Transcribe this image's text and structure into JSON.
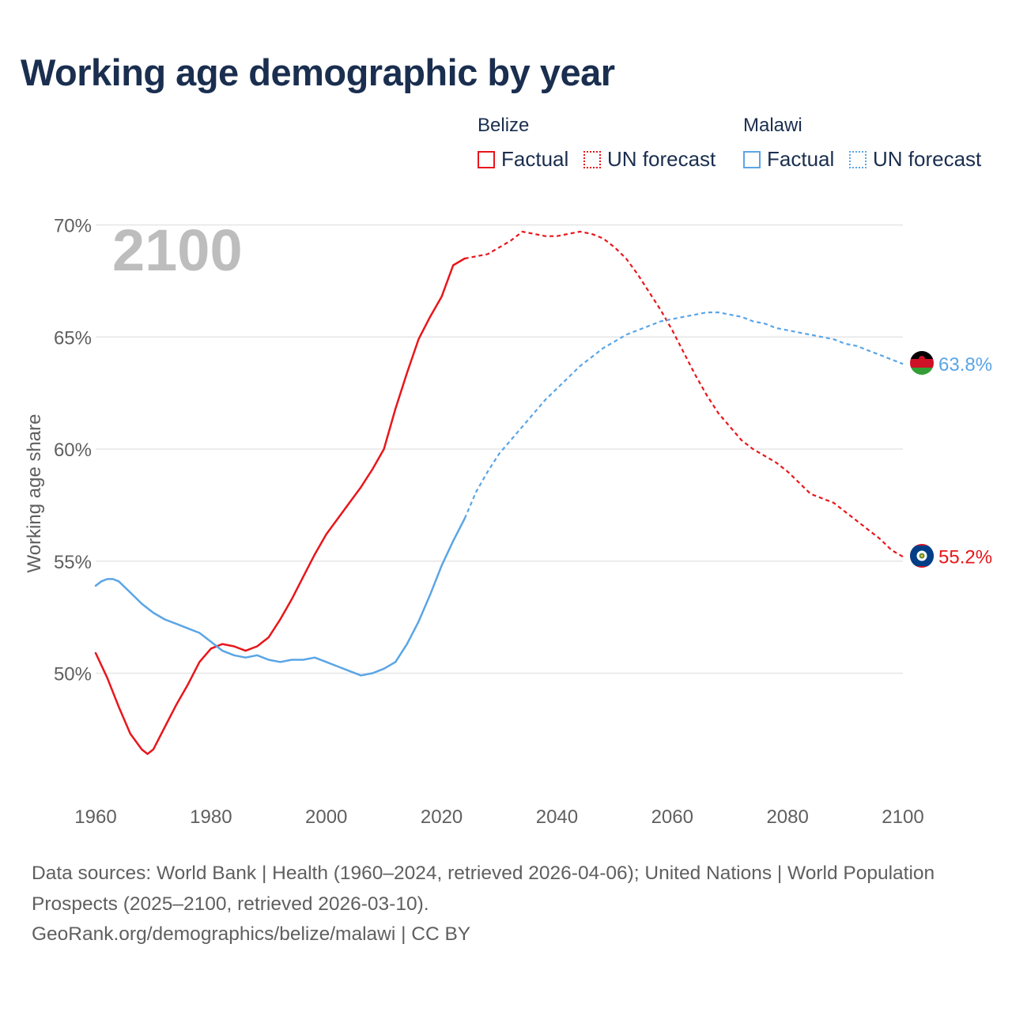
{
  "title": "Working age demographic by year",
  "legend": {
    "groups": [
      {
        "name": "Belize",
        "color": "#e8161b",
        "factual_label": "Factual",
        "forecast_label": "UN forecast"
      },
      {
        "name": "Malawi",
        "color": "#5aa5e6",
        "factual_label": "Factual",
        "forecast_label": "UN forecast"
      }
    ]
  },
  "watermark_year": "2100",
  "chart_data": {
    "type": "line",
    "title": "Working age demographic by year",
    "xlabel": "",
    "ylabel": "Working age share",
    "xlim": [
      1960,
      2100
    ],
    "ylim": [
      45,
      71
    ],
    "xticks": [
      1960,
      1980,
      2000,
      2020,
      2040,
      2060,
      2080,
      2100
    ],
    "x_tick_labels": [
      "1960",
      "1980",
      "2000",
      "2020",
      "2040",
      "2060",
      "2080",
      "2100"
    ],
    "yticks": [
      50,
      55,
      60,
      65,
      70
    ],
    "y_tick_labels": [
      "50%",
      "55%",
      "60%",
      "65%",
      "70%"
    ],
    "grid": true,
    "factual_range": [
      1960,
      2024
    ],
    "forecast_range": [
      2024,
      2100
    ],
    "series": [
      {
        "name": "Belize",
        "color": "#e8161b",
        "end_label": "55.2%",
        "points": [
          [
            1960,
            50.9
          ],
          [
            1962,
            49.8
          ],
          [
            1964,
            48.5
          ],
          [
            1966,
            47.3
          ],
          [
            1968,
            46.6
          ],
          [
            1969,
            46.4
          ],
          [
            1970,
            46.6
          ],
          [
            1972,
            47.6
          ],
          [
            1974,
            48.6
          ],
          [
            1976,
            49.5
          ],
          [
            1978,
            50.5
          ],
          [
            1980,
            51.1
          ],
          [
            1982,
            51.3
          ],
          [
            1984,
            51.2
          ],
          [
            1986,
            51.0
          ],
          [
            1988,
            51.2
          ],
          [
            1990,
            51.6
          ],
          [
            1992,
            52.4
          ],
          [
            1994,
            53.3
          ],
          [
            1996,
            54.3
          ],
          [
            1998,
            55.3
          ],
          [
            2000,
            56.2
          ],
          [
            2002,
            56.9
          ],
          [
            2004,
            57.6
          ],
          [
            2006,
            58.3
          ],
          [
            2008,
            59.1
          ],
          [
            2010,
            60.0
          ],
          [
            2012,
            61.8
          ],
          [
            2014,
            63.4
          ],
          [
            2016,
            64.9
          ],
          [
            2018,
            65.9
          ],
          [
            2020,
            66.8
          ],
          [
            2022,
            68.2
          ],
          [
            2024,
            68.5
          ],
          [
            2026,
            68.6
          ],
          [
            2028,
            68.7
          ],
          [
            2030,
            69.0
          ],
          [
            2032,
            69.3
          ],
          [
            2034,
            69.7
          ],
          [
            2036,
            69.6
          ],
          [
            2038,
            69.5
          ],
          [
            2040,
            69.5
          ],
          [
            2042,
            69.6
          ],
          [
            2044,
            69.7
          ],
          [
            2046,
            69.6
          ],
          [
            2048,
            69.4
          ],
          [
            2050,
            69.0
          ],
          [
            2052,
            68.5
          ],
          [
            2054,
            67.8
          ],
          [
            2056,
            67.0
          ],
          [
            2058,
            66.2
          ],
          [
            2060,
            65.3
          ],
          [
            2062,
            64.3
          ],
          [
            2064,
            63.3
          ],
          [
            2066,
            62.4
          ],
          [
            2068,
            61.6
          ],
          [
            2070,
            61.0
          ],
          [
            2072,
            60.4
          ],
          [
            2074,
            60.0
          ],
          [
            2076,
            59.7
          ],
          [
            2078,
            59.4
          ],
          [
            2080,
            59.0
          ],
          [
            2082,
            58.5
          ],
          [
            2084,
            58.0
          ],
          [
            2086,
            57.8
          ],
          [
            2088,
            57.6
          ],
          [
            2090,
            57.2
          ],
          [
            2092,
            56.8
          ],
          [
            2094,
            56.4
          ],
          [
            2096,
            56.0
          ],
          [
            2098,
            55.5
          ],
          [
            2100,
            55.2
          ]
        ]
      },
      {
        "name": "Malawi",
        "color": "#5aa5e6",
        "end_label": "63.8%",
        "points": [
          [
            1960,
            53.9
          ],
          [
            1961,
            54.1
          ],
          [
            1962,
            54.2
          ],
          [
            1963,
            54.2
          ],
          [
            1964,
            54.1
          ],
          [
            1966,
            53.6
          ],
          [
            1968,
            53.1
          ],
          [
            1970,
            52.7
          ],
          [
            1972,
            52.4
          ],
          [
            1974,
            52.2
          ],
          [
            1976,
            52.0
          ],
          [
            1978,
            51.8
          ],
          [
            1980,
            51.4
          ],
          [
            1982,
            51.0
          ],
          [
            1984,
            50.8
          ],
          [
            1986,
            50.7
          ],
          [
            1988,
            50.8
          ],
          [
            1990,
            50.6
          ],
          [
            1992,
            50.5
          ],
          [
            1994,
            50.6
          ],
          [
            1996,
            50.6
          ],
          [
            1998,
            50.7
          ],
          [
            2000,
            50.5
          ],
          [
            2002,
            50.3
          ],
          [
            2004,
            50.1
          ],
          [
            2006,
            49.9
          ],
          [
            2008,
            50.0
          ],
          [
            2010,
            50.2
          ],
          [
            2012,
            50.5
          ],
          [
            2014,
            51.3
          ],
          [
            2016,
            52.3
          ],
          [
            2018,
            53.5
          ],
          [
            2020,
            54.8
          ],
          [
            2022,
            55.9
          ],
          [
            2024,
            56.9
          ],
          [
            2026,
            58.1
          ],
          [
            2028,
            59.0
          ],
          [
            2030,
            59.8
          ],
          [
            2032,
            60.4
          ],
          [
            2034,
            61.0
          ],
          [
            2036,
            61.6
          ],
          [
            2038,
            62.2
          ],
          [
            2040,
            62.7
          ],
          [
            2042,
            63.2
          ],
          [
            2044,
            63.7
          ],
          [
            2046,
            64.1
          ],
          [
            2048,
            64.5
          ],
          [
            2050,
            64.8
          ],
          [
            2052,
            65.1
          ],
          [
            2054,
            65.3
          ],
          [
            2056,
            65.5
          ],
          [
            2058,
            65.7
          ],
          [
            2060,
            65.8
          ],
          [
            2062,
            65.9
          ],
          [
            2064,
            66.0
          ],
          [
            2066,
            66.1
          ],
          [
            2068,
            66.1
          ],
          [
            2070,
            66.0
          ],
          [
            2072,
            65.9
          ],
          [
            2074,
            65.7
          ],
          [
            2076,
            65.6
          ],
          [
            2078,
            65.4
          ],
          [
            2080,
            65.3
          ],
          [
            2082,
            65.2
          ],
          [
            2084,
            65.1
          ],
          [
            2086,
            65.0
          ],
          [
            2088,
            64.9
          ],
          [
            2090,
            64.7
          ],
          [
            2092,
            64.6
          ],
          [
            2094,
            64.4
          ],
          [
            2096,
            64.2
          ],
          [
            2098,
            64.0
          ],
          [
            2100,
            63.8
          ]
        ]
      }
    ]
  },
  "footer": {
    "sources": "Data sources: World Bank | Health (1960–2024, retrieved 2026-04-06); United Nations | World Population Prospects (2025–2100, retrieved 2026-03-10).",
    "attribution": "GeoRank.org/demographics/belize/malawi | CC BY"
  }
}
